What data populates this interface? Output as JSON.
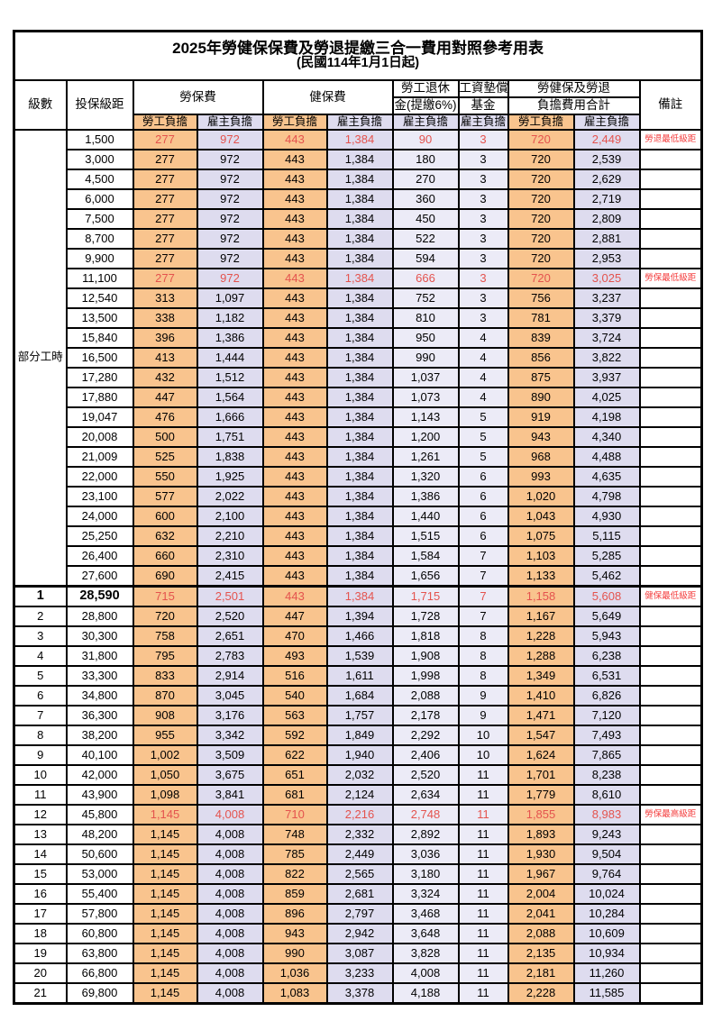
{
  "title": "2025年勞健保保費及勞退提繳三合一費用對照參考用表",
  "subtitle": "(民國114年1月1日起)",
  "header": {
    "level": "級數",
    "bracket": "投保級距",
    "labor_fee": "勞保費",
    "health_fee": "健保費",
    "pension_line1": "勞工退休",
    "pension_line2": "金(提繳6%)",
    "wage_fund_line1": "工資墊償",
    "wage_fund_line2": "基金",
    "total_line1": "勞健保及勞退",
    "total_line2": "負擔費用合計",
    "remark": "備註",
    "employee": "勞工負擔",
    "employer": "雇主負擔"
  },
  "part_time_label": "部分工時",
  "colors": {
    "employee_bg": "#F9C48E",
    "employer_bg": "#DEDCEF",
    "employer_light_bg": "#ECEBF7",
    "highlight_value_red": "#E4534E",
    "remark_red": "#F43C3C",
    "border": "#000000"
  },
  "rows": [
    {
      "level": "",
      "bracket": "1,500",
      "v": [
        "277",
        "972",
        "443",
        "1,384",
        "90",
        "3",
        "720",
        "2,449"
      ],
      "remark": "勞退最低級距",
      "highlight": true,
      "emph": false,
      "section_start": false
    },
    {
      "level": "",
      "bracket": "3,000",
      "v": [
        "277",
        "972",
        "443",
        "1,384",
        "180",
        "3",
        "720",
        "2,539"
      ],
      "remark": "",
      "highlight": false,
      "emph": false,
      "section_start": false
    },
    {
      "level": "",
      "bracket": "4,500",
      "v": [
        "277",
        "972",
        "443",
        "1,384",
        "270",
        "3",
        "720",
        "2,629"
      ],
      "remark": "",
      "highlight": false,
      "emph": false,
      "section_start": false
    },
    {
      "level": "",
      "bracket": "6,000",
      "v": [
        "277",
        "972",
        "443",
        "1,384",
        "360",
        "3",
        "720",
        "2,719"
      ],
      "remark": "",
      "highlight": false,
      "emph": false,
      "section_start": false
    },
    {
      "level": "",
      "bracket": "7,500",
      "v": [
        "277",
        "972",
        "443",
        "1,384",
        "450",
        "3",
        "720",
        "2,809"
      ],
      "remark": "",
      "highlight": false,
      "emph": false,
      "section_start": false
    },
    {
      "level": "",
      "bracket": "8,700",
      "v": [
        "277",
        "972",
        "443",
        "1,384",
        "522",
        "3",
        "720",
        "2,881"
      ],
      "remark": "",
      "highlight": false,
      "emph": false,
      "section_start": false
    },
    {
      "level": "",
      "bracket": "9,900",
      "v": [
        "277",
        "972",
        "443",
        "1,384",
        "594",
        "3",
        "720",
        "2,953"
      ],
      "remark": "",
      "highlight": false,
      "emph": false,
      "section_start": false
    },
    {
      "level": "",
      "bracket": "11,100",
      "v": [
        "277",
        "972",
        "443",
        "1,384",
        "666",
        "3",
        "720",
        "3,025"
      ],
      "remark": "勞保最低級距",
      "highlight": true,
      "emph": false,
      "section_start": false
    },
    {
      "level": "",
      "bracket": "12,540",
      "v": [
        "313",
        "1,097",
        "443",
        "1,384",
        "752",
        "3",
        "756",
        "3,237"
      ],
      "remark": "",
      "highlight": false,
      "emph": false,
      "section_start": false
    },
    {
      "level": "",
      "bracket": "13,500",
      "v": [
        "338",
        "1,182",
        "443",
        "1,384",
        "810",
        "3",
        "781",
        "3,379"
      ],
      "remark": "",
      "highlight": false,
      "emph": false,
      "section_start": false
    },
    {
      "level": "",
      "bracket": "15,840",
      "v": [
        "396",
        "1,386",
        "443",
        "1,384",
        "950",
        "4",
        "839",
        "3,724"
      ],
      "remark": "",
      "highlight": false,
      "emph": false,
      "section_start": false
    },
    {
      "level": "",
      "bracket": "16,500",
      "v": [
        "413",
        "1,444",
        "443",
        "1,384",
        "990",
        "4",
        "856",
        "3,822"
      ],
      "remark": "",
      "highlight": false,
      "emph": false,
      "section_start": false
    },
    {
      "level": "",
      "bracket": "17,280",
      "v": [
        "432",
        "1,512",
        "443",
        "1,384",
        "1,037",
        "4",
        "875",
        "3,937"
      ],
      "remark": "",
      "highlight": false,
      "emph": false,
      "section_start": false
    },
    {
      "level": "",
      "bracket": "17,880",
      "v": [
        "447",
        "1,564",
        "443",
        "1,384",
        "1,073",
        "4",
        "890",
        "4,025"
      ],
      "remark": "",
      "highlight": false,
      "emph": false,
      "section_start": false
    },
    {
      "level": "",
      "bracket": "19,047",
      "v": [
        "476",
        "1,666",
        "443",
        "1,384",
        "1,143",
        "5",
        "919",
        "4,198"
      ],
      "remark": "",
      "highlight": false,
      "emph": false,
      "section_start": false
    },
    {
      "level": "",
      "bracket": "20,008",
      "v": [
        "500",
        "1,751",
        "443",
        "1,384",
        "1,200",
        "5",
        "943",
        "4,340"
      ],
      "remark": "",
      "highlight": false,
      "emph": false,
      "section_start": false
    },
    {
      "level": "",
      "bracket": "21,009",
      "v": [
        "525",
        "1,838",
        "443",
        "1,384",
        "1,261",
        "5",
        "968",
        "4,488"
      ],
      "remark": "",
      "highlight": false,
      "emph": false,
      "section_start": false
    },
    {
      "level": "",
      "bracket": "22,000",
      "v": [
        "550",
        "1,925",
        "443",
        "1,384",
        "1,320",
        "6",
        "993",
        "4,635"
      ],
      "remark": "",
      "highlight": false,
      "emph": false,
      "section_start": false
    },
    {
      "level": "",
      "bracket": "23,100",
      "v": [
        "577",
        "2,022",
        "443",
        "1,384",
        "1,386",
        "6",
        "1,020",
        "4,798"
      ],
      "remark": "",
      "highlight": false,
      "emph": false,
      "section_start": false
    },
    {
      "level": "",
      "bracket": "24,000",
      "v": [
        "600",
        "2,100",
        "443",
        "1,384",
        "1,440",
        "6",
        "1,043",
        "4,930"
      ],
      "remark": "",
      "highlight": false,
      "emph": false,
      "section_start": false
    },
    {
      "level": "",
      "bracket": "25,250",
      "v": [
        "632",
        "2,210",
        "443",
        "1,384",
        "1,515",
        "6",
        "1,075",
        "5,115"
      ],
      "remark": "",
      "highlight": false,
      "emph": false,
      "section_start": false
    },
    {
      "level": "",
      "bracket": "26,400",
      "v": [
        "660",
        "2,310",
        "443",
        "1,384",
        "1,584",
        "7",
        "1,103",
        "5,285"
      ],
      "remark": "",
      "highlight": false,
      "emph": false,
      "section_start": false
    },
    {
      "level": "",
      "bracket": "27,600",
      "v": [
        "690",
        "2,415",
        "443",
        "1,384",
        "1,656",
        "7",
        "1,133",
        "5,462"
      ],
      "remark": "",
      "highlight": false,
      "emph": false,
      "section_start": false
    },
    {
      "level": "1",
      "bracket": "28,590",
      "v": [
        "715",
        "2,501",
        "443",
        "1,384",
        "1,715",
        "7",
        "1,158",
        "5,608"
      ],
      "remark": "健保最低級距",
      "highlight": true,
      "emph": true,
      "section_start": true
    },
    {
      "level": "2",
      "bracket": "28,800",
      "v": [
        "720",
        "2,520",
        "447",
        "1,394",
        "1,728",
        "7",
        "1,167",
        "5,649"
      ],
      "remark": "",
      "highlight": false,
      "emph": false,
      "section_start": false
    },
    {
      "level": "3",
      "bracket": "30,300",
      "v": [
        "758",
        "2,651",
        "470",
        "1,466",
        "1,818",
        "8",
        "1,228",
        "5,943"
      ],
      "remark": "",
      "highlight": false,
      "emph": false,
      "section_start": false
    },
    {
      "level": "4",
      "bracket": "31,800",
      "v": [
        "795",
        "2,783",
        "493",
        "1,539",
        "1,908",
        "8",
        "1,288",
        "6,238"
      ],
      "remark": "",
      "highlight": false,
      "emph": false,
      "section_start": false
    },
    {
      "level": "5",
      "bracket": "33,300",
      "v": [
        "833",
        "2,914",
        "516",
        "1,611",
        "1,998",
        "8",
        "1,349",
        "6,531"
      ],
      "remark": "",
      "highlight": false,
      "emph": false,
      "section_start": false
    },
    {
      "level": "6",
      "bracket": "34,800",
      "v": [
        "870",
        "3,045",
        "540",
        "1,684",
        "2,088",
        "9",
        "1,410",
        "6,826"
      ],
      "remark": "",
      "highlight": false,
      "emph": false,
      "section_start": false
    },
    {
      "level": "7",
      "bracket": "36,300",
      "v": [
        "908",
        "3,176",
        "563",
        "1,757",
        "2,178",
        "9",
        "1,471",
        "7,120"
      ],
      "remark": "",
      "highlight": false,
      "emph": false,
      "section_start": false
    },
    {
      "level": "8",
      "bracket": "38,200",
      "v": [
        "955",
        "3,342",
        "592",
        "1,849",
        "2,292",
        "10",
        "1,547",
        "7,493"
      ],
      "remark": "",
      "highlight": false,
      "emph": false,
      "section_start": false
    },
    {
      "level": "9",
      "bracket": "40,100",
      "v": [
        "1,002",
        "3,509",
        "622",
        "1,940",
        "2,406",
        "10",
        "1,624",
        "7,865"
      ],
      "remark": "",
      "highlight": false,
      "emph": false,
      "section_start": false
    },
    {
      "level": "10",
      "bracket": "42,000",
      "v": [
        "1,050",
        "3,675",
        "651",
        "2,032",
        "2,520",
        "11",
        "1,701",
        "8,238"
      ],
      "remark": "",
      "highlight": false,
      "emph": false,
      "section_start": false
    },
    {
      "level": "11",
      "bracket": "43,900",
      "v": [
        "1,098",
        "3,841",
        "681",
        "2,124",
        "2,634",
        "11",
        "1,779",
        "8,610"
      ],
      "remark": "",
      "highlight": false,
      "emph": false,
      "section_start": false
    },
    {
      "level": "12",
      "bracket": "45,800",
      "v": [
        "1,145",
        "4,008",
        "710",
        "2,216",
        "2,748",
        "11",
        "1,855",
        "8,983"
      ],
      "remark": "勞保最高級距",
      "highlight": true,
      "emph": false,
      "section_start": false
    },
    {
      "level": "13",
      "bracket": "48,200",
      "v": [
        "1,145",
        "4,008",
        "748",
        "2,332",
        "2,892",
        "11",
        "1,893",
        "9,243"
      ],
      "remark": "",
      "highlight": false,
      "emph": false,
      "section_start": false
    },
    {
      "level": "14",
      "bracket": "50,600",
      "v": [
        "1,145",
        "4,008",
        "785",
        "2,449",
        "3,036",
        "11",
        "1,930",
        "9,504"
      ],
      "remark": "",
      "highlight": false,
      "emph": false,
      "section_start": false
    },
    {
      "level": "15",
      "bracket": "53,000",
      "v": [
        "1,145",
        "4,008",
        "822",
        "2,565",
        "3,180",
        "11",
        "1,967",
        "9,764"
      ],
      "remark": "",
      "highlight": false,
      "emph": false,
      "section_start": false
    },
    {
      "level": "16",
      "bracket": "55,400",
      "v": [
        "1,145",
        "4,008",
        "859",
        "2,681",
        "3,324",
        "11",
        "2,004",
        "10,024"
      ],
      "remark": "",
      "highlight": false,
      "emph": false,
      "section_start": false
    },
    {
      "level": "17",
      "bracket": "57,800",
      "v": [
        "1,145",
        "4,008",
        "896",
        "2,797",
        "3,468",
        "11",
        "2,041",
        "10,284"
      ],
      "remark": "",
      "highlight": false,
      "emph": false,
      "section_start": false
    },
    {
      "level": "18",
      "bracket": "60,800",
      "v": [
        "1,145",
        "4,008",
        "943",
        "2,942",
        "3,648",
        "11",
        "2,088",
        "10,609"
      ],
      "remark": "",
      "highlight": false,
      "emph": false,
      "section_start": false
    },
    {
      "level": "19",
      "bracket": "63,800",
      "v": [
        "1,145",
        "4,008",
        "990",
        "3,087",
        "3,828",
        "11",
        "2,135",
        "10,934"
      ],
      "remark": "",
      "highlight": false,
      "emph": false,
      "section_start": false
    },
    {
      "level": "20",
      "bracket": "66,800",
      "v": [
        "1,145",
        "4,008",
        "1,036",
        "3,233",
        "4,008",
        "11",
        "2,181",
        "11,260"
      ],
      "remark": "",
      "highlight": false,
      "emph": false,
      "section_start": false
    },
    {
      "level": "21",
      "bracket": "69,800",
      "v": [
        "1,145",
        "4,008",
        "1,083",
        "3,378",
        "4,188",
        "11",
        "2,228",
        "11,585"
      ],
      "remark": "",
      "highlight": false,
      "emph": false,
      "section_start": false
    }
  ]
}
